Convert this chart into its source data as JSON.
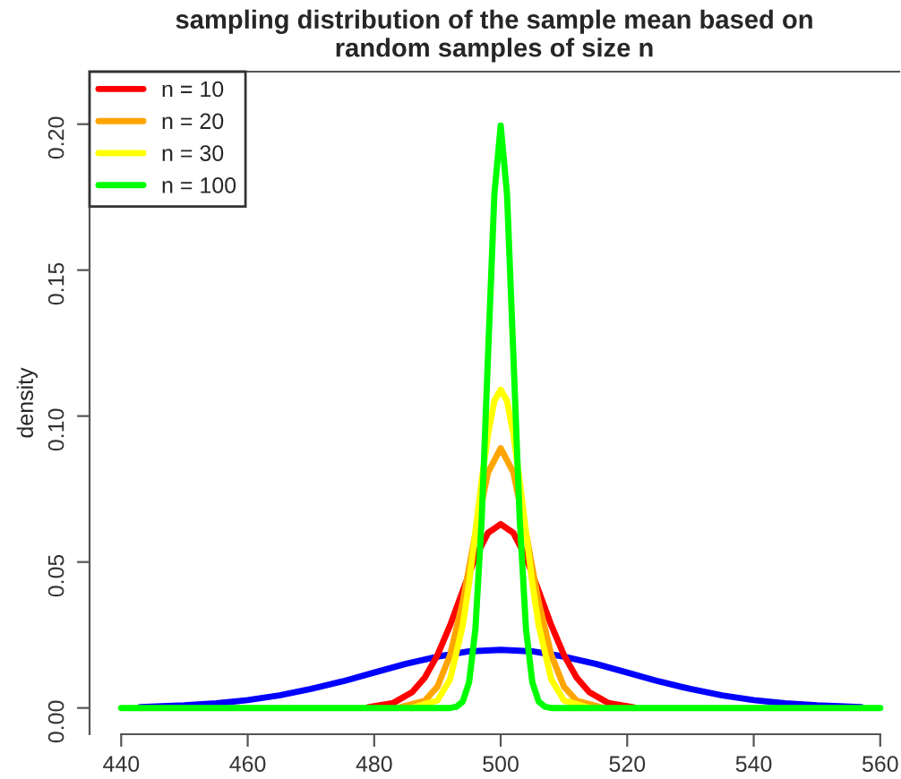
{
  "chart_data": {
    "type": "line",
    "title": "sampling distribution of the sample mean based on\nrandom samples of size n",
    "ylabel": "density",
    "xlim": [
      435,
      563
    ],
    "ylim": [
      -0.009,
      0.218
    ],
    "xticks": [
      440,
      460,
      480,
      500,
      520,
      540,
      560
    ],
    "yticks": [
      {
        "value": 0,
        "label": "0.00"
      },
      {
        "value": 0.05,
        "label": "0.05"
      },
      {
        "value": 0.1,
        "label": "0.10"
      },
      {
        "value": 0.15,
        "label": "0.15"
      },
      {
        "value": 0.2,
        "label": "0.20"
      }
    ],
    "grid": false,
    "legend": "top left",
    "marker": "none",
    "line_style": "solid",
    "series": [
      {
        "color": "#0000ff",
        "x": [
          443,
          450,
          455,
          460,
          465,
          470,
          475,
          480,
          485,
          490,
          495,
          500,
          505,
          510,
          515,
          520,
          525,
          530,
          535,
          540,
          545,
          550,
          557
        ],
        "values": [
          0.0003,
          0.0009,
          0.0016,
          0.0027,
          0.0043,
          0.0065,
          0.0091,
          0.0121,
          0.0151,
          0.0176,
          0.0194,
          0.0199,
          0.0194,
          0.0176,
          0.0151,
          0.0121,
          0.0091,
          0.0065,
          0.0043,
          0.0027,
          0.0016,
          0.0009,
          0.0003
        ]
      },
      {
        "name": "n = 10",
        "color": "#ff0000",
        "x": [
          479,
          483,
          486,
          488,
          490,
          492,
          494,
          496,
          498,
          500,
          502,
          504,
          506,
          508,
          510,
          512,
          514,
          517,
          521
        ],
        "values": [
          0.0002,
          0.0017,
          0.0054,
          0.0104,
          0.0181,
          0.0283,
          0.0401,
          0.0516,
          0.06,
          0.063,
          0.06,
          0.0516,
          0.0401,
          0.0283,
          0.0181,
          0.0104,
          0.0054,
          0.0017,
          0.0002
        ]
      },
      {
        "name": "n = 20",
        "color": "#ffa500",
        "x": [
          484,
          488,
          490,
          492,
          494,
          496,
          498,
          500,
          502,
          504,
          506,
          508,
          510,
          512,
          516
        ],
        "values": [
          0.0002,
          0.0025,
          0.0073,
          0.0181,
          0.0363,
          0.0598,
          0.0807,
          0.089,
          0.0807,
          0.0598,
          0.0363,
          0.0181,
          0.0073,
          0.0025,
          0.0002
        ]
      },
      {
        "name": "n = 30",
        "color": "#ffff00",
        "x": [
          486,
          490,
          492,
          494,
          495,
          496,
          497,
          498,
          499,
          500,
          501,
          502,
          503,
          504,
          505,
          506,
          508,
          510,
          514
        ],
        "values": [
          0.0,
          0.0026,
          0.0098,
          0.0283,
          0.0428,
          0.0603,
          0.0779,
          0.0938,
          0.1052,
          0.109,
          0.1052,
          0.0938,
          0.0779,
          0.0603,
          0.0428,
          0.0283,
          0.0098,
          0.0026,
          0.0
        ]
      },
      {
        "name": "n = 100",
        "color": "#00ff00",
        "x": [
          440,
          492,
          493,
          494,
          495,
          496,
          497,
          498,
          499,
          500,
          501,
          502,
          503,
          504,
          505,
          506,
          507,
          508,
          560
        ],
        "values": [
          0.0,
          0.0,
          0.0004,
          0.0022,
          0.0088,
          0.027,
          0.0648,
          0.121,
          0.176,
          0.1995,
          0.176,
          0.121,
          0.0648,
          0.027,
          0.0088,
          0.0022,
          0.0004,
          0.0,
          0.0
        ]
      }
    ]
  }
}
